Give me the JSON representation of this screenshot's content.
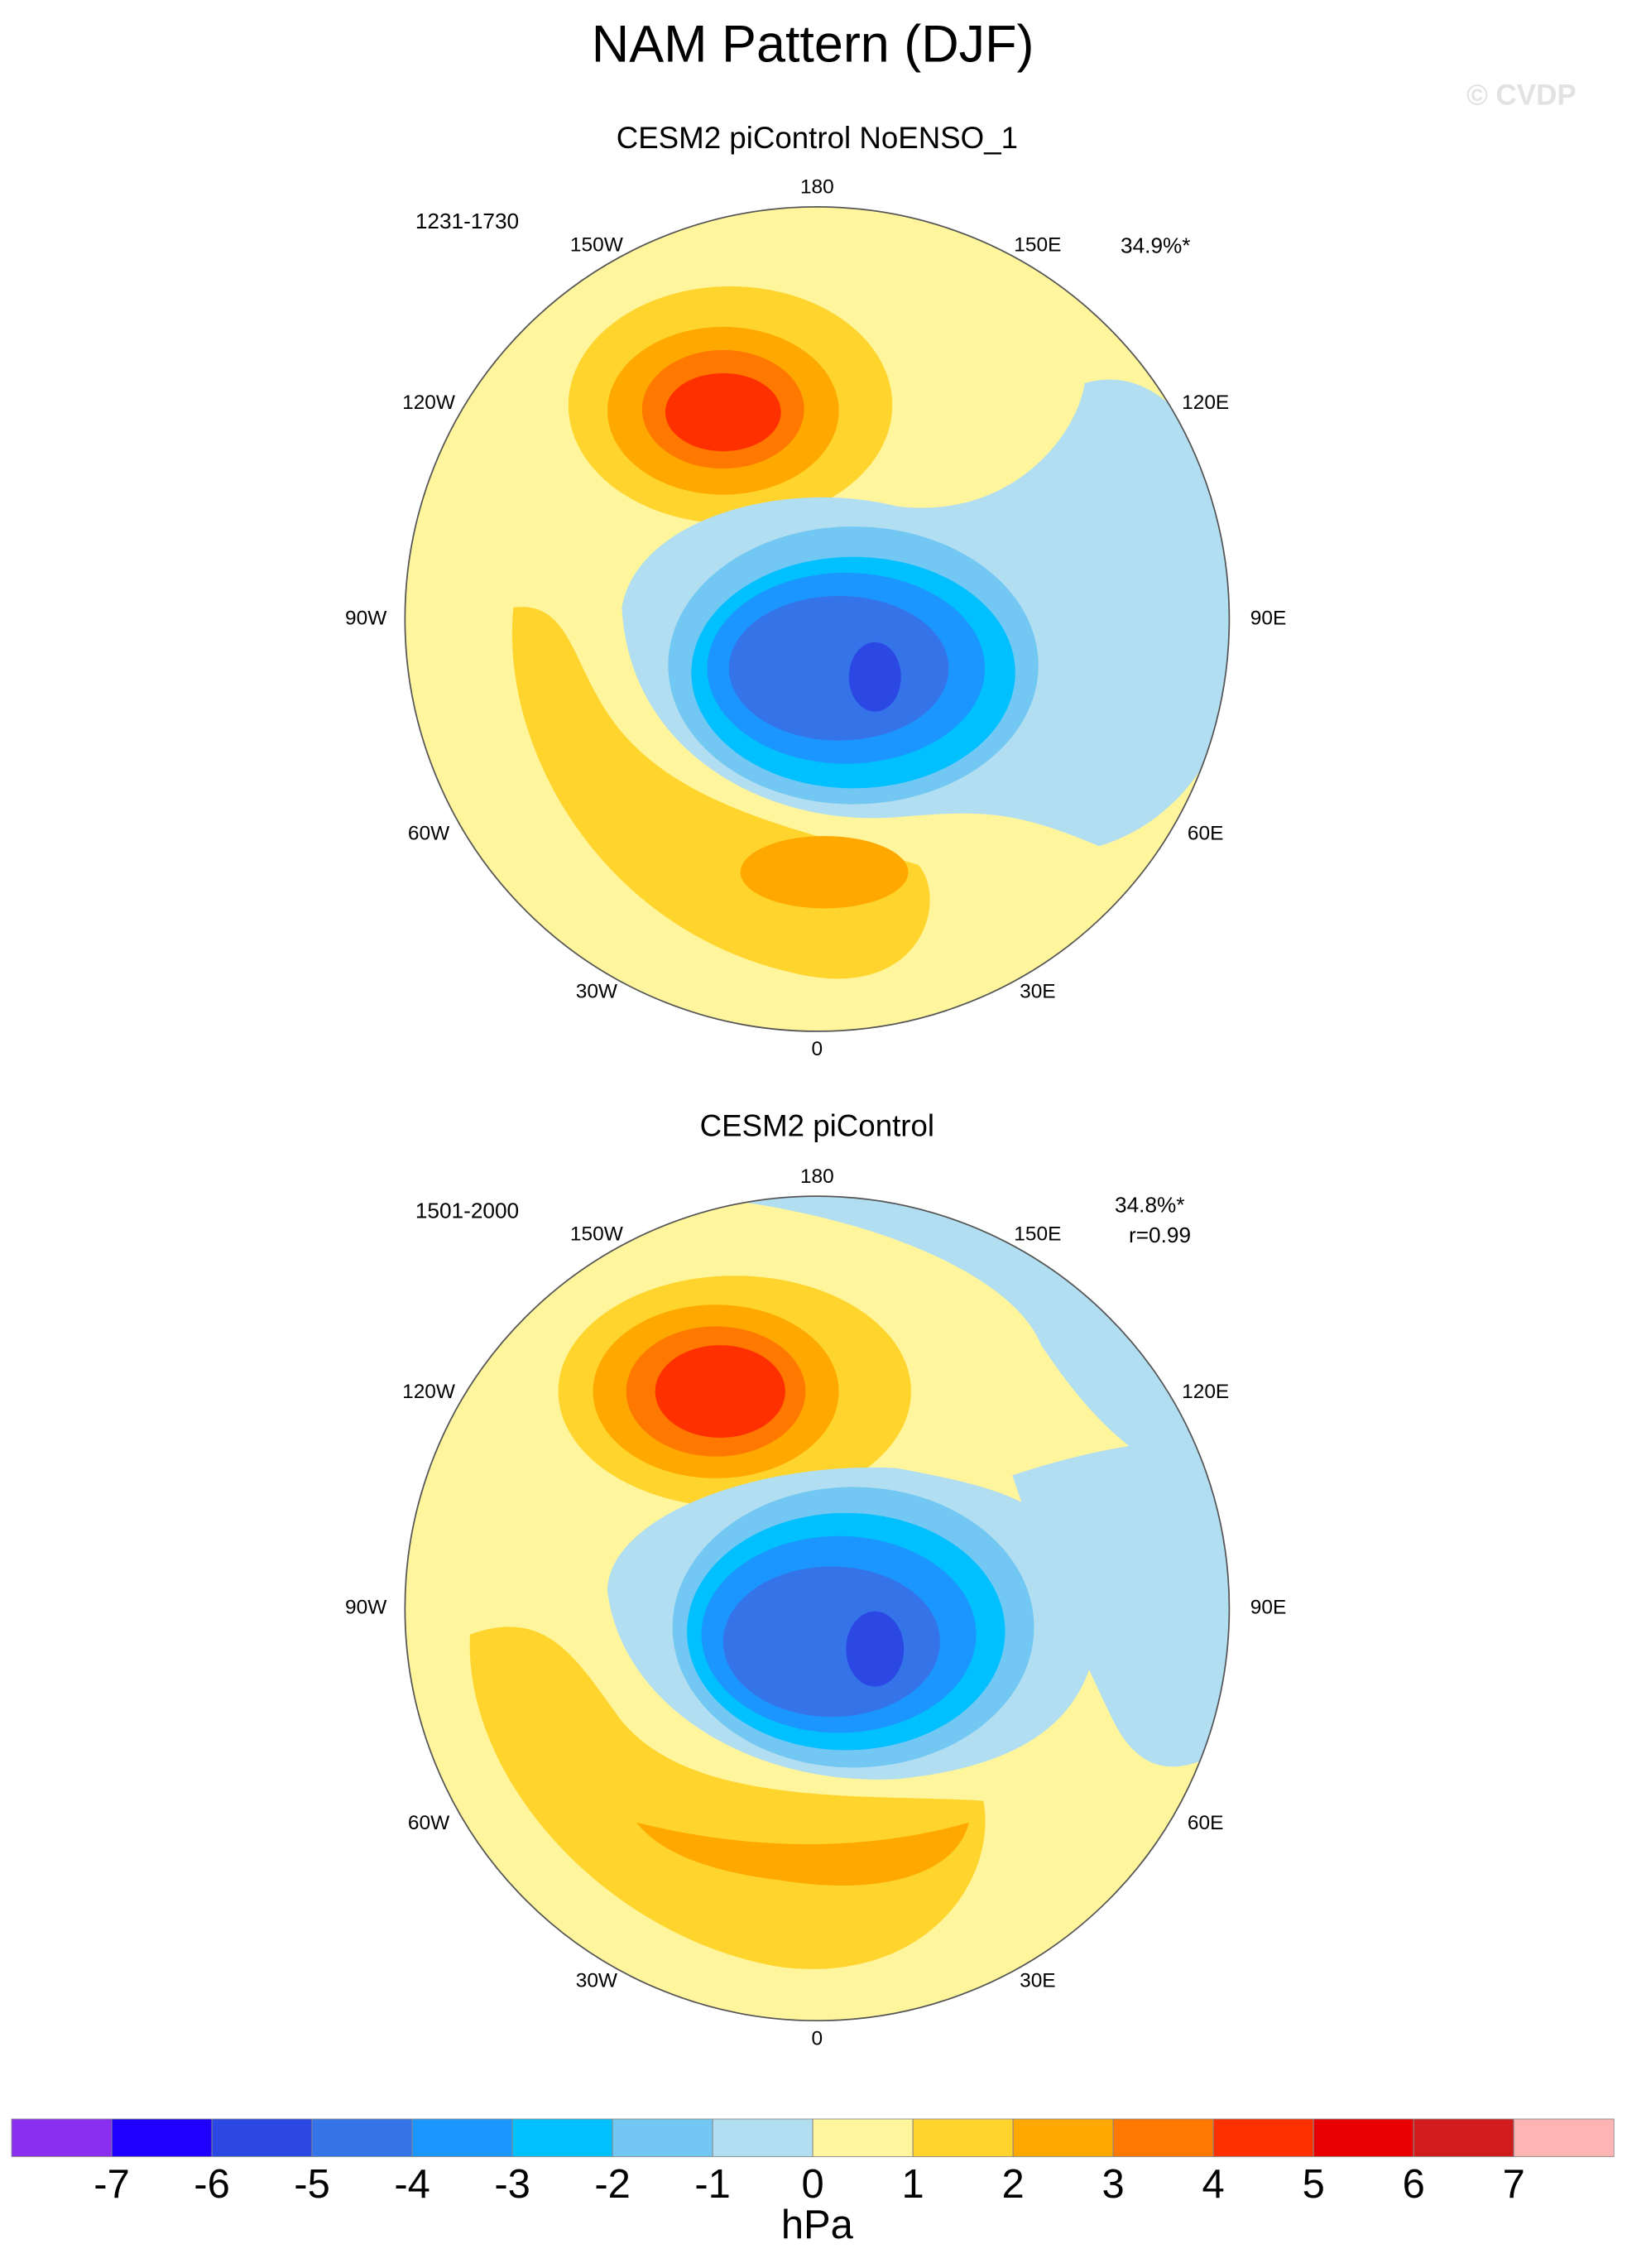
{
  "title": "NAM Pattern (DJF)",
  "watermark": "© CVDP",
  "panels": [
    {
      "title": "CESM2 piControl NoENSO_1",
      "years": "1231-1730",
      "explained_variance": "34.9%*"
    },
    {
      "title": "CESM2 piControl",
      "years": "1501-2000",
      "explained_variance": "34.8%*",
      "correlation": "r=0.99"
    }
  ],
  "longitude_labels": [
    "0",
    "30E",
    "60E",
    "90E",
    "120E",
    "150E",
    "180",
    "150W",
    "120W",
    "90W",
    "60W",
    "30W"
  ],
  "colorbar": {
    "levels": [
      -7,
      -6,
      -5,
      -4,
      -3,
      -2,
      -1,
      0,
      1,
      2,
      3,
      4,
      5,
      6,
      7
    ],
    "colors": [
      "#8a2ff0",
      "#1e00ff",
      "#2c48e4",
      "#3474e8",
      "#1c96ff",
      "#00c0ff",
      "#72c8f2",
      "#b2def2",
      "#fff59c",
      "#ffd42c",
      "#ffa800",
      "#ff7800",
      "#ff3000",
      "#e80000",
      "#d01c1c",
      "#ffb4b4"
    ],
    "unit": "hPa"
  }
}
